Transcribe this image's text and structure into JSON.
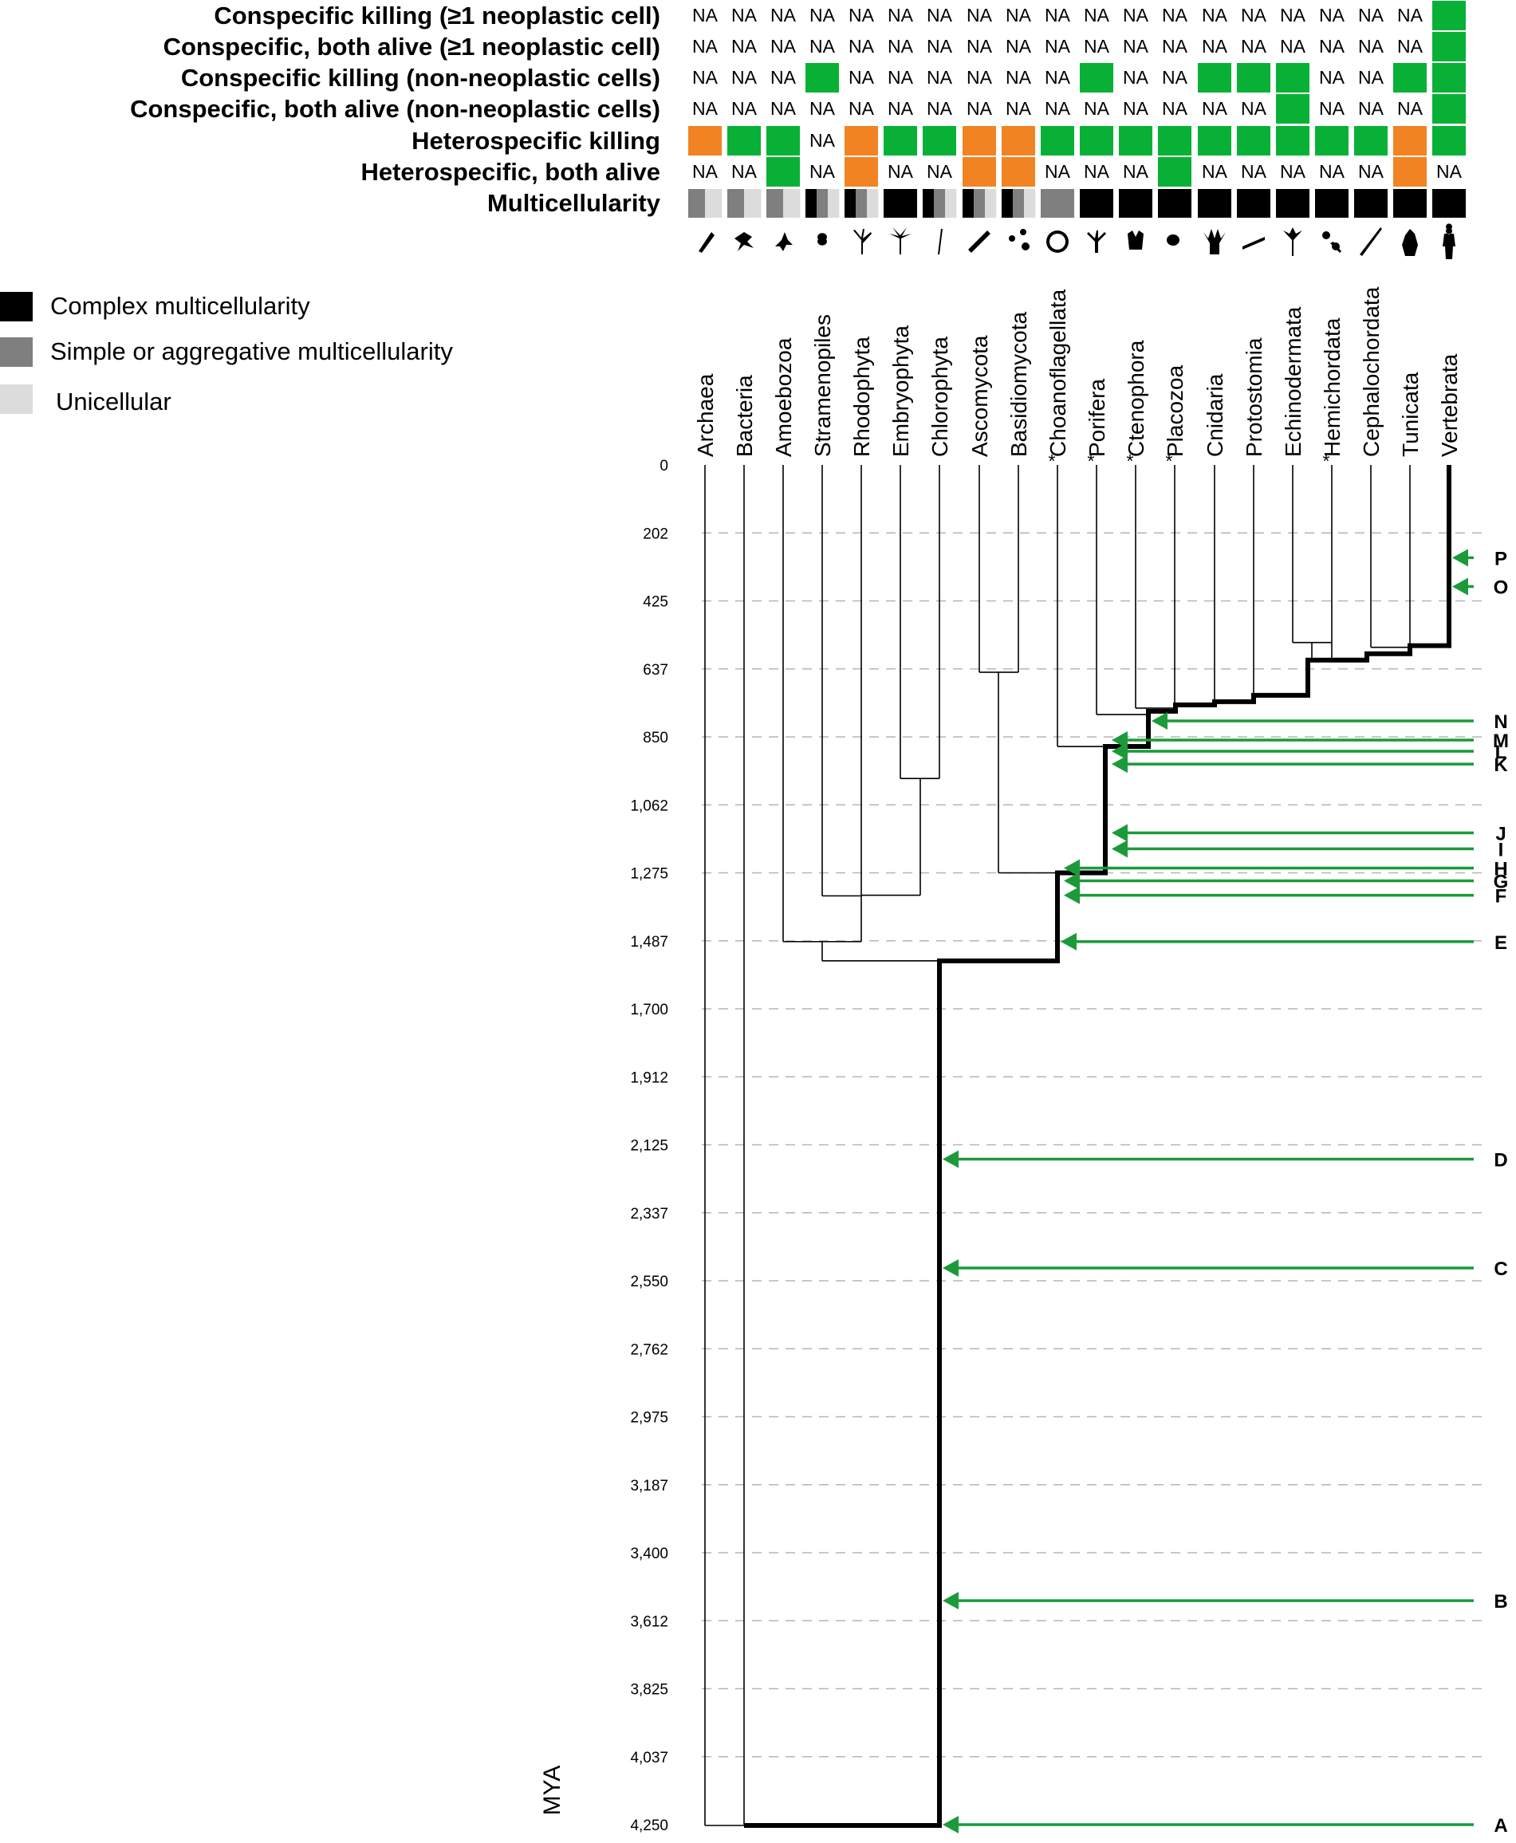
{
  "colors": {
    "present": "#08b136",
    "absent": "#f28322",
    "complex": "#000000",
    "simple": "#7f7f7f",
    "unicellular": "#dcdcdc",
    "arrow": "#1c9a3a",
    "grid": "#b5b5b5"
  },
  "rows": [
    {
      "key": "csk_neo",
      "label": "Conspecific killing (≥1 neoplastic cell)"
    },
    {
      "key": "csa_neo",
      "label": "Conspecific, both alive (≥1 neoplastic cell)"
    },
    {
      "key": "csk_non",
      "label": "Conspecific killing (non-neoplastic cells)"
    },
    {
      "key": "csa_non",
      "label": "Conspecific, both alive (non-neoplastic cells)"
    },
    {
      "key": "hk",
      "label": "Heterospecific killing"
    },
    {
      "key": "ha",
      "label": "Heterospecific, both alive"
    },
    {
      "key": "mc",
      "label": "Multicellularity"
    }
  ],
  "na_text": "NA",
  "taxa": [
    "Archaea",
    "Bacteria",
    "Amoebozoa",
    "Stramenopiles",
    "Rhodophyta",
    "Embryophyta",
    "Chlorophyta",
    "Ascomycota",
    "Basidiomycota",
    "Choanoflagellata",
    "Porifera",
    "Ctenophora",
    "Placozoa",
    "Cnidaria",
    "Protostomia",
    "Echinodermata",
    "Hemichordata",
    "Cephalochordata",
    "Tunicata",
    "Vertebrata"
  ],
  "starred_taxa": [
    "Choanoflagellata",
    "Porifera",
    "Ctenophora",
    "Placozoa",
    "Hemichordata"
  ],
  "matrix": [
    [
      "NA",
      "NA",
      "NA",
      "NA",
      "NA",
      "NA",
      "NA",
      "NA",
      "NA",
      "NA",
      "NA",
      "NA",
      "NA",
      "NA",
      "NA",
      "NA",
      "NA",
      "NA",
      "NA",
      "G"
    ],
    [
      "NA",
      "NA",
      "NA",
      "NA",
      "NA",
      "NA",
      "NA",
      "NA",
      "NA",
      "NA",
      "NA",
      "NA",
      "NA",
      "NA",
      "NA",
      "NA",
      "NA",
      "NA",
      "NA",
      "G"
    ],
    [
      "NA",
      "NA",
      "NA",
      "G",
      "NA",
      "NA",
      "NA",
      "NA",
      "NA",
      "NA",
      "G",
      "NA",
      "NA",
      "G",
      "G",
      "G",
      "NA",
      "NA",
      "G",
      "G"
    ],
    [
      "NA",
      "NA",
      "NA",
      "NA",
      "NA",
      "NA",
      "NA",
      "NA",
      "NA",
      "NA",
      "NA",
      "NA",
      "NA",
      "NA",
      "NA",
      "G",
      "NA",
      "NA",
      "NA",
      "G"
    ],
    [
      "O",
      "G",
      "G",
      "NA",
      "O",
      "G",
      "G",
      "O",
      "O",
      "G",
      "G",
      "G",
      "G",
      "G",
      "G",
      "G",
      "G",
      "G",
      "O",
      "G"
    ],
    [
      "NA",
      "NA",
      "G",
      "NA",
      "O",
      "NA",
      "NA",
      "O",
      "O",
      "NA",
      "NA",
      "NA",
      "G",
      "NA",
      "NA",
      "NA",
      "NA",
      "NA",
      "O",
      "NA"
    ]
  ],
  "multicellularity": [
    [
      "S",
      "U"
    ],
    [
      "S",
      "U"
    ],
    [
      "S",
      "U"
    ],
    [
      "C",
      "S",
      "U"
    ],
    [
      "C",
      "S",
      "U"
    ],
    [
      "C"
    ],
    [
      "C",
      "S",
      "U"
    ],
    [
      "C",
      "S",
      "U"
    ],
    [
      "C",
      "S",
      "U"
    ],
    [
      "S"
    ],
    [
      "C"
    ],
    [
      "C"
    ],
    [
      "C"
    ],
    [
      "C"
    ],
    [
      "C"
    ],
    [
      "C"
    ],
    [
      "C"
    ],
    [
      "C"
    ],
    [
      "C"
    ],
    [
      "C"
    ]
  ],
  "silhouettes": [
    "rod-bacterium-icon",
    "branched-cell-icon",
    "amoeba-icon",
    "diatom-icon",
    "red-alga-icon",
    "palm-tree-icon",
    "green-alga-icon",
    "yeast-icon",
    "mushroom-icon",
    "choanoflagellate-colony-icon",
    "sponge-icon",
    "comb-jelly-icon",
    "placozoan-icon",
    "sea-anemone-icon",
    "worm-icon",
    "crinoid-icon",
    "acorn-worm-icon",
    "lancelet-icon",
    "sea-squirt-icon",
    "human-icon"
  ],
  "legend": [
    {
      "key": "complex",
      "label": "Complex multicellularity"
    },
    {
      "key": "simple",
      "label": "Simple or aggregative multicellularity"
    },
    {
      "key": "unicellular",
      "label": "Unicellular"
    }
  ],
  "axis": {
    "title": "MYA",
    "ticks": [
      "0",
      "202",
      "425",
      "637",
      "850",
      "1,062",
      "1,275",
      "1,487",
      "1,700",
      "1,912",
      "2,125",
      "2,337",
      "2,550",
      "2,762",
      "2,975",
      "3,187",
      "3,400",
      "3,612",
      "3,825",
      "4,037",
      "4,250"
    ],
    "max": 4250
  },
  "events": [
    {
      "label": "P",
      "mya": 290
    },
    {
      "label": "O",
      "mya": 380
    },
    {
      "label": "N",
      "mya": 800
    },
    {
      "label": "M",
      "mya": 860
    },
    {
      "label": "L",
      "mya": 895
    },
    {
      "label": "K",
      "mya": 935
    },
    {
      "label": "J",
      "mya": 1150
    },
    {
      "label": "I",
      "mya": 1200
    },
    {
      "label": "H",
      "mya": 1260
    },
    {
      "label": "G",
      "mya": 1300
    },
    {
      "label": "F",
      "mya": 1345
    },
    {
      "label": "E",
      "mya": 1490
    },
    {
      "label": "D",
      "mya": 2170
    },
    {
      "label": "C",
      "mya": 2510
    },
    {
      "label": "B",
      "mya": 3550
    },
    {
      "label": "A",
      "mya": 4250
    }
  ]
}
